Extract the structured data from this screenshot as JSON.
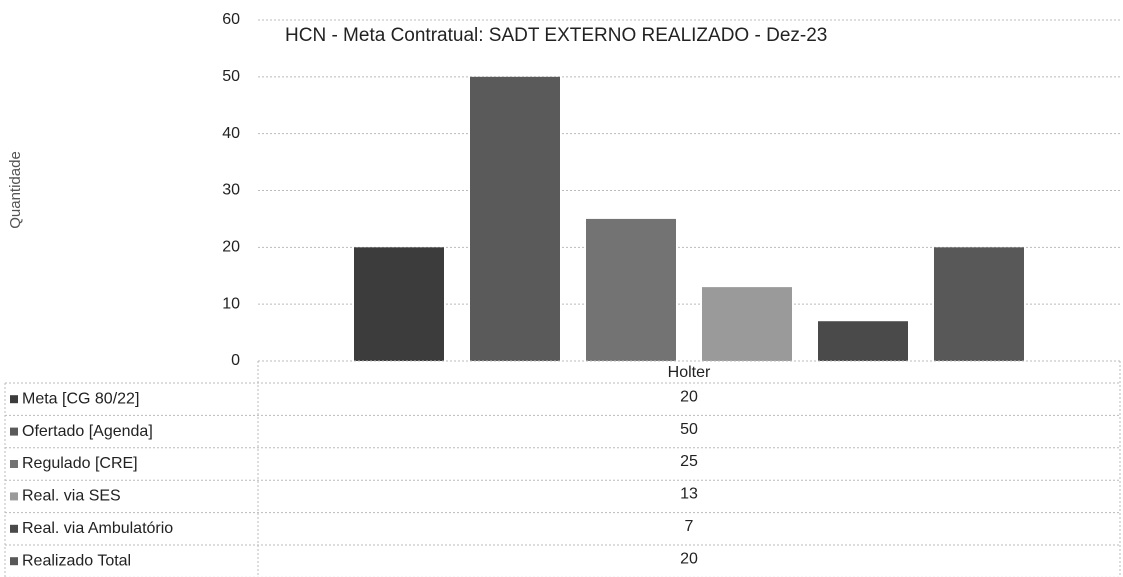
{
  "chart_data": {
    "type": "bar",
    "title": "HCN - Meta Contratual: SADT EXTERNO REALIZADO - Dez-23",
    "y_label": "Quantidade",
    "categories": [
      "Holter"
    ],
    "series": [
      {
        "name": "Meta [CG 80/22]",
        "color": "#3c3c3c",
        "values": [
          20
        ]
      },
      {
        "name": "Ofertado [Agenda]",
        "color": "#5a5a5a",
        "values": [
          50
        ]
      },
      {
        "name": "Regulado [CRE]",
        "color": "#737373",
        "values": [
          25
        ]
      },
      {
        "name": "Real. via SES",
        "color": "#9a9a9a",
        "values": [
          13
        ]
      },
      {
        "name": "Real. via Ambulatório",
        "color": "#4a4a4a",
        "values": [
          7
        ]
      },
      {
        "name": "Realizado Total",
        "color": "#585858",
        "values": [
          20
        ]
      }
    ],
    "ylim": [
      0,
      60
    ],
    "yticks": [
      0,
      10,
      20,
      30,
      40,
      50,
      60
    ],
    "grid": true
  }
}
